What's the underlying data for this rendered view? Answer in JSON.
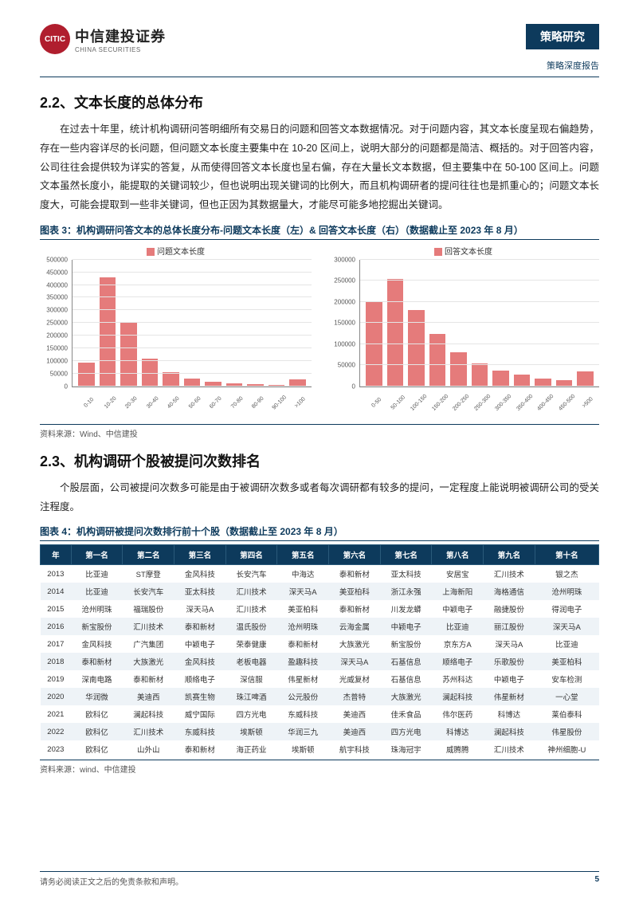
{
  "header": {
    "logo_cn": "中信建投证券",
    "logo_en": "CHINA SECURITIES",
    "logo_mark": "CITIC",
    "badge": "策略研究",
    "sub_badge": "策略深度报告"
  },
  "section22": {
    "heading": "2.2、文本长度的总体分布",
    "para": "在过去十年里，统计机构调研问答明细所有交易日的问题和回答文本数据情况。对于问题内容，其文本长度呈现右偏趋势，存在一些内容详尽的长问题，但问题文本长度主要集中在 10-20 区间上，说明大部分的问题都是简洁、概括的。对于回答内容，公司往往会提供较为详实的答复，从而使得回答文本长度也呈右偏，存在大量长文本数据，但主要集中在 50-100 区间上。问题文本虽然长度小，能提取的关键词较少，但也说明出现关键词的比例大，而且机构调研者的提问往往也是抓重心的；问题文本长度大，可能会提取到一些非关键词，但也正因为其数据量大，才能尽可能多地挖掘出关键词。"
  },
  "fig3": {
    "title": "图表 3：机构调研问答文本的总体长度分布-问题文本长度（左）& 回答文本长度（右）（数据截止至 2023 年 8 月）",
    "source": "资料来源：Wind、中信建投",
    "left": {
      "legend": "问题文本长度",
      "legend_color": "#e57b7b",
      "ylim": [
        0,
        500000
      ],
      "ytick_step": 50000,
      "yticks": [
        "0",
        "50000",
        "100000",
        "150000",
        "200000",
        "250000",
        "300000",
        "350000",
        "400000",
        "450000",
        "500000"
      ],
      "categories": [
        "0-10",
        "10-20",
        "20-30",
        "30-40",
        "40-50",
        "50-60",
        "60-70",
        "70-80",
        "80-90",
        "90-100",
        ">100"
      ],
      "values": [
        95000,
        430000,
        250000,
        110000,
        55000,
        30000,
        18000,
        13000,
        9000,
        7000,
        28000
      ],
      "bar_color": "#e57b7b",
      "grid_color": "#e5e5e5"
    },
    "right": {
      "legend": "回答文本长度",
      "legend_color": "#e57b7b",
      "ylim": [
        0,
        300000
      ],
      "ytick_step": 50000,
      "yticks": [
        "0",
        "50000",
        "100000",
        "150000",
        "200000",
        "250000",
        "300000"
      ],
      "categories": [
        "0-50",
        "50-100",
        "100-150",
        "150-200",
        "200-250",
        "250-300",
        "300-350",
        "350-400",
        "400-450",
        "450-500",
        ">500"
      ],
      "values": [
        200000,
        255000,
        180000,
        125000,
        80000,
        55000,
        37000,
        27000,
        19000,
        14000,
        35000
      ],
      "bar_color": "#e57b7b",
      "grid_color": "#e5e5e5"
    }
  },
  "section23": {
    "heading": "2.3、机构调研个股被提问次数排名",
    "para": "个股层面，公司被提问次数多可能是由于被调研次数多或者每次调研都有较多的提问，一定程度上能说明被调研公司的受关注程度。"
  },
  "fig4": {
    "title": "图表 4：机构调研被提问次数排行前十个股（数据截止至 2023 年 8 月）",
    "source": "资料来源：wind、中信建投",
    "columns": [
      "年",
      "第一名",
      "第二名",
      "第三名",
      "第四名",
      "第五名",
      "第六名",
      "第七名",
      "第八名",
      "第九名",
      "第十名"
    ],
    "rows": [
      [
        "2013",
        "比亚迪",
        "ST摩登",
        "金风科技",
        "长安汽车",
        "中海达",
        "泰和新材",
        "亚太科技",
        "安居宝",
        "汇川技术",
        "银之杰"
      ],
      [
        "2014",
        "比亚迪",
        "长安汽车",
        "亚太科技",
        "汇川技术",
        "深天马A",
        "美亚柏科",
        "浙江永强",
        "上海新阳",
        "海格通信",
        "沧州明珠"
      ],
      [
        "2015",
        "沧州明珠",
        "福瑞股份",
        "深天马A",
        "汇川技术",
        "美亚柏科",
        "泰和新材",
        "川发龙蟒",
        "中颖电子",
        "融捷股份",
        "得润电子"
      ],
      [
        "2016",
        "新宝股份",
        "汇川技术",
        "泰和新材",
        "温氏股份",
        "沧州明珠",
        "云海金属",
        "中颖电子",
        "比亚迪",
        "丽江股份",
        "深天马A"
      ],
      [
        "2017",
        "金风科技",
        "广汽集团",
        "中颖电子",
        "荣泰健康",
        "泰和新材",
        "大族激光",
        "新宝股份",
        "京东方A",
        "深天马A",
        "比亚迪"
      ],
      [
        "2018",
        "泰和新材",
        "大族激光",
        "金风科技",
        "老板电器",
        "盈趣科技",
        "深天马A",
        "石基信息",
        "顺络电子",
        "乐歌股份",
        "美亚柏科"
      ],
      [
        "2019",
        "深南电路",
        "泰和新材",
        "顺络电子",
        "深信服",
        "伟星新材",
        "光威复材",
        "石基信息",
        "苏州科达",
        "中颖电子",
        "安车检测"
      ],
      [
        "2020",
        "华润微",
        "美迪西",
        "凯赛生物",
        "珠江啤酒",
        "公元股份",
        "杰普特",
        "大族激光",
        "澜起科技",
        "伟星新材",
        "一心堂"
      ],
      [
        "2021",
        "欧科亿",
        "澜起科技",
        "威宁国际",
        "四方光电",
        "东威科技",
        "美迪西",
        "佳禾食品",
        "伟尔医药",
        "科博达",
        "莱伯泰科"
      ],
      [
        "2022",
        "欧科亿",
        "汇川技术",
        "东威科技",
        "埃斯顿",
        "华润三九",
        "美迪西",
        "四方光电",
        "科博达",
        "澜起科技",
        "伟星股份"
      ],
      [
        "2023",
        "欧科亿",
        "山外山",
        "泰和新材",
        "海正药业",
        "埃斯顿",
        "航宇科技",
        "珠海冠宇",
        "威腾腾",
        "汇川技术",
        "神州细胞-U"
      ]
    ]
  },
  "footer": {
    "disclaimer": "请务必阅读正文之后的免责条款和声明。",
    "page": "5"
  }
}
